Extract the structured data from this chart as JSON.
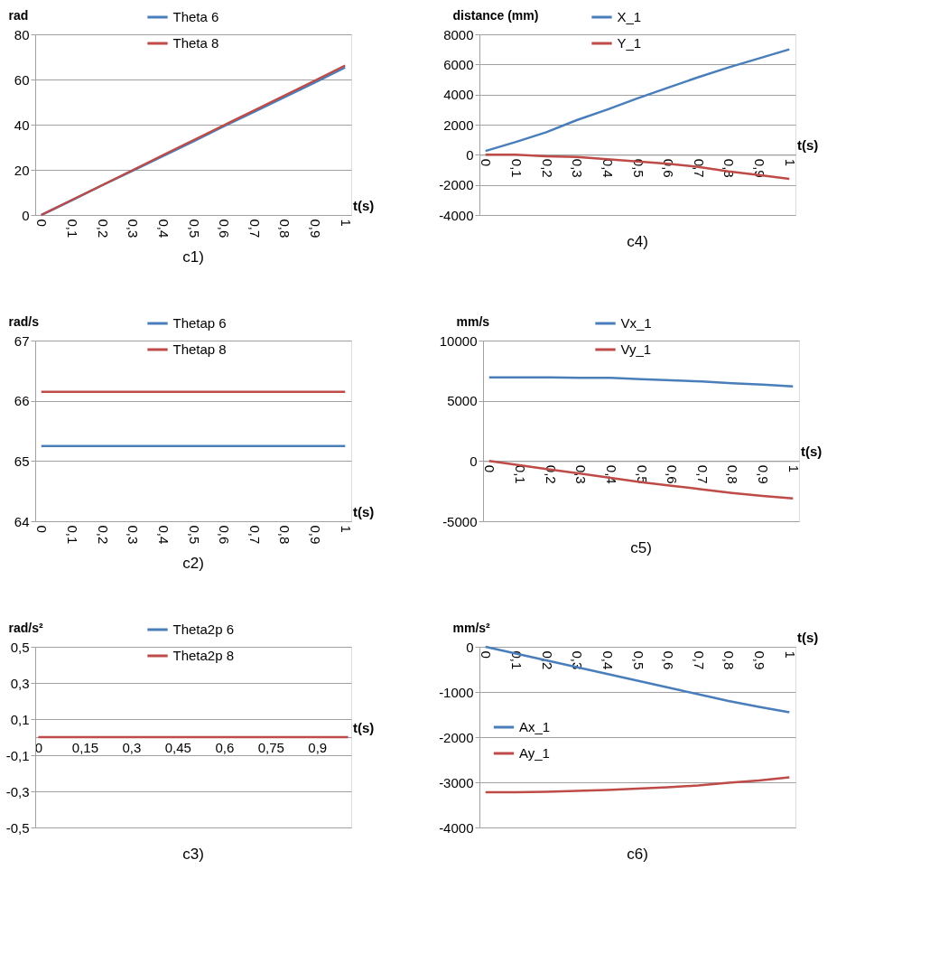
{
  "chart_data": [
    {
      "type": "line",
      "ylabel": "rad",
      "xlabel": "t(s)",
      "annotations": [
        "c1)"
      ],
      "categories": [
        "0",
        "0,1",
        "0,2",
        "0,3",
        "0,4",
        "0,5",
        "0,6",
        "0,7",
        "0,8",
        "0,9",
        "1"
      ],
      "ylim": [
        0,
        80
      ],
      "yticks": [
        0,
        20,
        40,
        60,
        80
      ],
      "grid": "y",
      "legend": "top",
      "series": [
        {
          "name": "Theta 6",
          "color": "#4a7ebb",
          "values": [
            0,
            6.5,
            13.1,
            19.6,
            26.1,
            32.6,
            39.2,
            45.7,
            52.2,
            58.7,
            65.3
          ]
        },
        {
          "name": "Theta 8",
          "color": "#be4b48",
          "values": [
            0,
            6.6,
            13.2,
            19.8,
            26.5,
            33.1,
            39.7,
            46.3,
            52.9,
            59.5,
            66.2
          ]
        }
      ]
    },
    {
      "type": "line",
      "ylabel": "distance  (mm)",
      "xlabel": "t(s)",
      "annotations": [
        "c4)"
      ],
      "categories": [
        "0",
        "0,1",
        "0,2",
        "0,3",
        "0,4",
        "0,5",
        "0,6",
        "0,7",
        "0,8",
        "0,9",
        "1"
      ],
      "ylim": [
        -4000,
        8000
      ],
      "yticks": [
        -4000,
        -2000,
        0,
        2000,
        4000,
        6000,
        8000
      ],
      "grid": "y",
      "legend": "top",
      "series": [
        {
          "name": "X_1",
          "color": "#4a7ebb",
          "values": [
            250,
            850,
            1500,
            2300,
            3000,
            3750,
            4450,
            5150,
            5800,
            6400,
            7000
          ]
        },
        {
          "name": "Y_1",
          "color": "#be4b48",
          "values": [
            0,
            0,
            -100,
            -150,
            -300,
            -450,
            -600,
            -800,
            -1100,
            -1350,
            -1600
          ]
        }
      ]
    },
    {
      "type": "line",
      "ylabel": "rad/s",
      "xlabel": "t(s)",
      "annotations": [
        "c2)"
      ],
      "categories": [
        "0",
        "0,1",
        "0,2",
        "0,3",
        "0,4",
        "0,5",
        "0,6",
        "0,7",
        "0,8",
        "0,9",
        "1"
      ],
      "ylim": [
        64,
        67
      ],
      "yticks": [
        64,
        65,
        66,
        67
      ],
      "grid": "y",
      "legend": "top",
      "series": [
        {
          "name": "Thetap 6",
          "color": "#4a7ebb",
          "values": [
            65.25,
            65.25,
            65.25,
            65.25,
            65.25,
            65.25,
            65.25,
            65.25,
            65.25,
            65.25,
            65.25
          ]
        },
        {
          "name": "Thetap 8",
          "color": "#be4b48",
          "values": [
            66.15,
            66.15,
            66.15,
            66.15,
            66.15,
            66.15,
            66.15,
            66.15,
            66.15,
            66.15,
            66.15
          ]
        }
      ]
    },
    {
      "type": "line",
      "ylabel": "mm/s",
      "xlabel": "t(s)",
      "annotations": [
        "c5)"
      ],
      "categories": [
        "0",
        "0,1",
        "0,2",
        "0,3",
        "0,4",
        "0,5",
        "0,6",
        "0,7",
        "0,8",
        "0,9",
        "1"
      ],
      "ylim": [
        -5000,
        10000
      ],
      "yticks": [
        -5000,
        0,
        5000,
        10000
      ],
      "grid": "y",
      "legend": "top",
      "series": [
        {
          "name": "Vx_1",
          "color": "#4a7ebb",
          "values": [
            6950,
            6950,
            6950,
            6900,
            6900,
            6800,
            6700,
            6600,
            6450,
            6350,
            6200
          ]
        },
        {
          "name": "Vy_1",
          "color": "#be4b48",
          "values": [
            0,
            -350,
            -700,
            -1050,
            -1400,
            -1750,
            -2050,
            -2350,
            -2650,
            -2900,
            -3100
          ]
        }
      ]
    },
    {
      "type": "line",
      "ylabel": "rad/s²",
      "xlabel": "t(s)",
      "annotations": [
        "c3)"
      ],
      "categories": [
        "0",
        null,
        null,
        "0,15",
        null,
        null,
        "0,3",
        null,
        null,
        "0,45",
        null,
        null,
        "0,6",
        null,
        null,
        "0,75",
        null,
        null,
        "0,9",
        null,
        null
      ],
      "ylim": [
        -0.5,
        0.5
      ],
      "yticks": [
        {
          "value": -0.5,
          "label": "-0,5"
        },
        {
          "value": -0.3,
          "label": "-0,3"
        },
        {
          "value": -0.1,
          "label": "-0,1"
        },
        {
          "value": 0.1,
          "label": "0,1"
        },
        {
          "value": 0.3,
          "label": "0,3"
        },
        {
          "value": 0.5,
          "label": "0,5"
        }
      ],
      "grid": "y",
      "legend": "top",
      "series": [
        {
          "name": "Theta2p 6",
          "color": "#4a7ebb",
          "values": [
            null,
            null,
            null,
            null,
            null,
            null,
            null,
            null,
            null,
            null,
            null,
            null,
            null,
            null,
            null,
            null,
            null,
            null,
            null,
            null,
            null
          ]
        },
        {
          "name": "Theta2p 8",
          "color": "#be4b48",
          "values": [
            0,
            0,
            0,
            0,
            0,
            0,
            0,
            0,
            0,
            0,
            0,
            0,
            0,
            0,
            0,
            0,
            0,
            0,
            0,
            0,
            0
          ]
        }
      ]
    },
    {
      "type": "line",
      "ylabel": "mm/s²",
      "xlabel": "t(s)",
      "annotations": [
        "c6)"
      ],
      "categories": [
        "0",
        "0,1",
        "0,2",
        "0,3",
        "0,4",
        "0,5",
        "0,6",
        "0,7",
        "0,8",
        "0,9",
        "1"
      ],
      "ylim": [
        -4000,
        0
      ],
      "yticks": [
        -4000,
        -3000,
        -2000,
        -1000,
        0
      ],
      "grid": "y",
      "legend": "left",
      "series": [
        {
          "name": "Ax_1",
          "color": "#4a7ebb",
          "values": [
            0,
            -150,
            -300,
            -450,
            -600,
            -750,
            -900,
            -1050,
            -1200,
            -1330,
            -1450
          ]
        },
        {
          "name": "Ay_1",
          "color": "#be4b48",
          "values": [
            -3220,
            -3220,
            -3210,
            -3190,
            -3170,
            -3140,
            -3110,
            -3070,
            -3010,
            -2960,
            -2890
          ]
        }
      ]
    }
  ]
}
